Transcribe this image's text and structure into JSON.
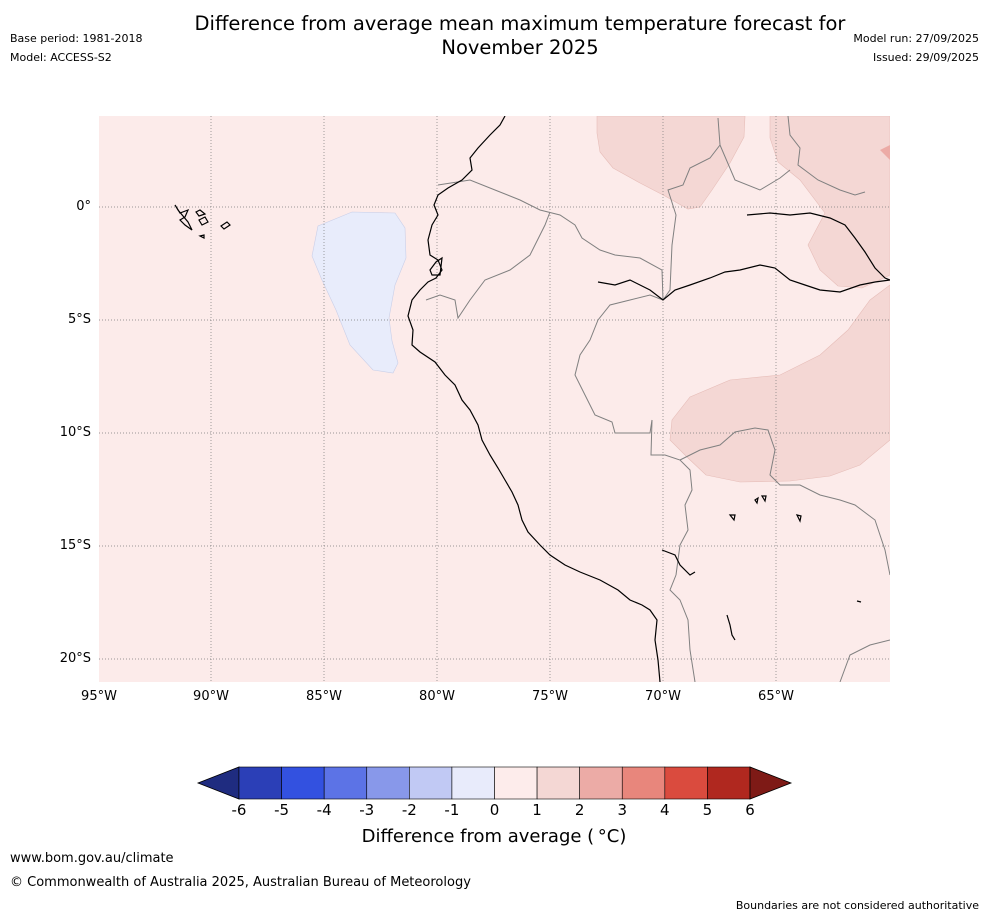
{
  "title": {
    "line1": "Difference from average mean maximum temperature forecast for",
    "line2": "November 2025"
  },
  "meta": {
    "base_period": "Base period: 1981-2018",
    "model": "Model: ACCESS-S2",
    "model_run": "Model run: 27/09/2025",
    "issued": "Issued: 29/09/2025"
  },
  "map": {
    "lat_labels": [
      "0°",
      "5°S",
      "10°S",
      "15°S",
      "20°S"
    ],
    "lon_labels": [
      "95°W",
      "90°W",
      "85°W",
      "80°W",
      "75°W",
      "70°W",
      "65°W"
    ],
    "background_color": "#fcebea",
    "anomaly_zones": [
      {
        "name": "cool-anomaly-pacific",
        "range": "-1 to 0",
        "color": "#e8ecfb"
      },
      {
        "name": "warm-anomaly-amazon",
        "range": "1 to 2",
        "color": "#f4d7d4"
      },
      {
        "name": "warm-anomaly-east",
        "range": "2 to 3",
        "color": "#ecaba6"
      }
    ]
  },
  "colorbar": {
    "labels": [
      "-6",
      "-5",
      "-4",
      "-3",
      "-2",
      "-1",
      "0",
      "1",
      "2",
      "3",
      "4",
      "5",
      "6"
    ],
    "colors": [
      "#1f2c80",
      "#2b3fb7",
      "#3351e0",
      "#5c73e6",
      "#8898ea",
      "#c1c9f4",
      "#e8ebfb",
      "#fdeceb",
      "#f4d7d4",
      "#ecaba6",
      "#e8867c",
      "#da4b3e",
      "#b0281f",
      "#7e1a16"
    ],
    "axis_label": "Difference from average ( °C)"
  },
  "footer": {
    "url": "www.bom.gov.au/climate",
    "copyright": "© Commonwealth of Australia 2025, Australian Bureau of Meteorology",
    "disclaimer": "Boundaries are not considered authoritative"
  }
}
